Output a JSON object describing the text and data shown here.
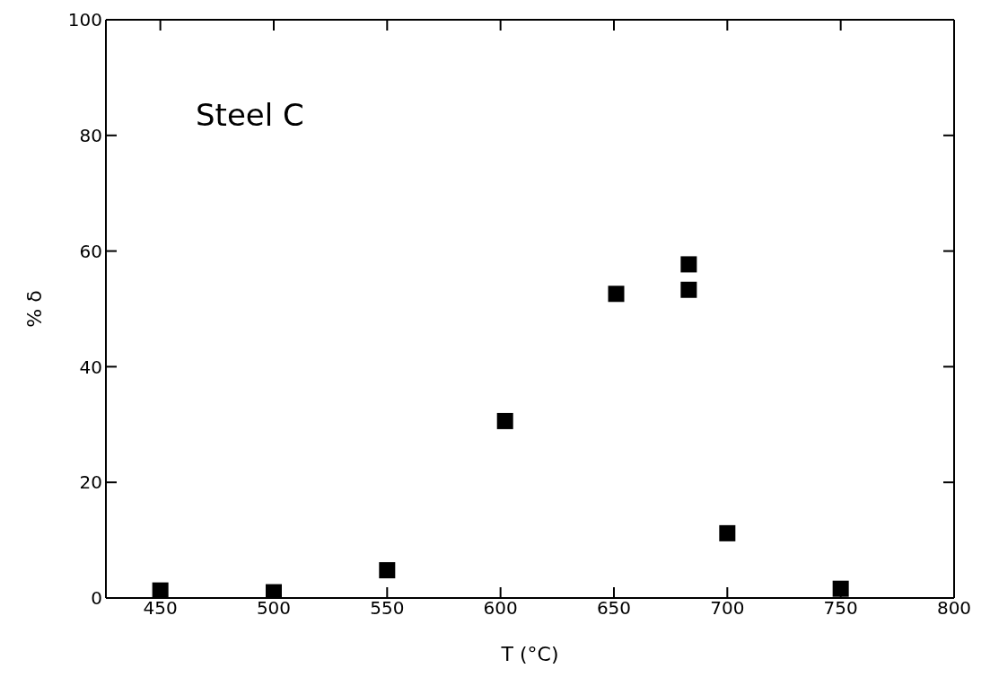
{
  "chart_data": {
    "type": "scatter",
    "xlabel": "T (°C)",
    "ylabel": "% δ",
    "annotations": [
      "Steel C"
    ],
    "x": [
      450,
      500,
      550,
      602,
      651,
      683,
      683,
      700,
      750
    ],
    "values": [
      1.3,
      1,
      4.8,
      30.6,
      52.6,
      57.7,
      53.3,
      11.2,
      1.6
    ],
    "color": "#000000",
    "marker": "square",
    "xlim": [
      426,
      800
    ],
    "xticks": [
      450,
      500,
      550,
      600,
      650,
      700,
      750,
      800
    ],
    "ylim": [
      0,
      100
    ],
    "yticks": [
      0,
      20,
      40,
      60,
      80,
      100
    ]
  }
}
